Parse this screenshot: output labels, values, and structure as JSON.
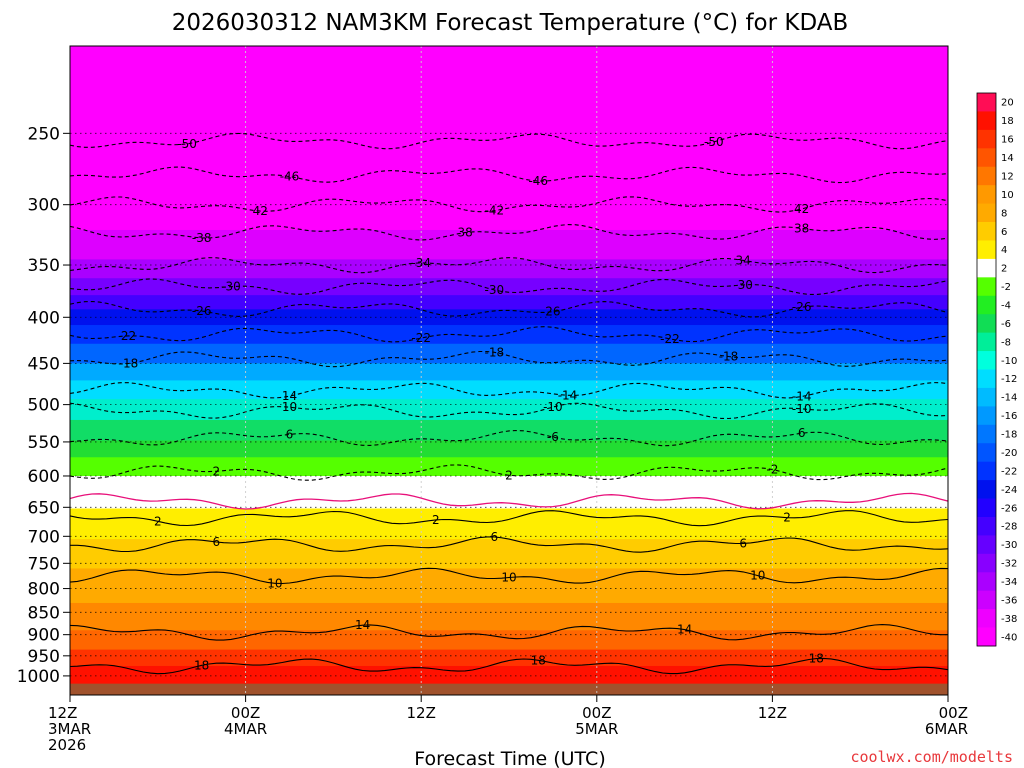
{
  "chart_data": {
    "type": "heatmap",
    "title": "2026030312 NAM3KM Forecast Temperature (°C) for KDAB",
    "xlabel": "Forecast Time (UTC)",
    "ylabel": "",
    "credit": "coolwx.com/modelts",
    "y_axis": {
      "scale": "log-pressure",
      "units": "hPa",
      "range": [
        1050,
        200
      ],
      "ticks": [
        250,
        300,
        350,
        400,
        450,
        500,
        550,
        600,
        650,
        700,
        750,
        800,
        850,
        900,
        950,
        1000
      ]
    },
    "x_axis": {
      "units": "hours since 2026030312",
      "range": [
        0,
        60
      ],
      "ticks": [
        {
          "hour": 0,
          "lines": [
            "12Z",
            "3MAR",
            "2026"
          ]
        },
        {
          "hour": 12,
          "lines": [
            "00Z",
            "4MAR"
          ]
        },
        {
          "hour": 24,
          "lines": [
            "12Z"
          ]
        },
        {
          "hour": 36,
          "lines": [
            "00Z",
            "5MAR"
          ]
        },
        {
          "hour": 48,
          "lines": [
            "12Z"
          ]
        },
        {
          "hour": 60,
          "lines": [
            "00Z",
            "6MAR"
          ]
        }
      ]
    },
    "colorbar": {
      "labels": [
        "20",
        "18",
        "16",
        "14",
        "12",
        "10",
        "8",
        "6",
        "4",
        "2",
        "-2",
        "-4",
        "-6",
        "-8",
        "-10",
        "-12",
        "-14",
        "-16",
        "-18",
        "-20",
        "-22",
        "-24",
        "-26",
        "-28",
        "-30",
        "-32",
        "-34",
        "-36",
        "-38",
        "-40"
      ],
      "colors": [
        "#ff0d55",
        "#ff1100",
        "#ff3300",
        "#ff5500",
        "#ff7700",
        "#ff9900",
        "#ffaa00",
        "#ffcc00",
        "#ffee00",
        "#ffffff",
        "#55ff00",
        "#22ee22",
        "#11dd55",
        "#00ee99",
        "#00ffdd",
        "#00ddff",
        "#00bbff",
        "#0099ff",
        "#0077ff",
        "#0055ff",
        "#0033ff",
        "#0011ee",
        "#2200ff",
        "#4400ff",
        "#6600ff",
        "#8800ff",
        "#aa00ff",
        "#cc00ff",
        "#ee00ff",
        "#ff00ff"
      ]
    },
    "bands": [
      {
        "top": 200,
        "bottom": 320,
        "color": "#ff00ff"
      },
      {
        "top": 320,
        "bottom": 345,
        "color": "#dd00ff"
      },
      {
        "top": 345,
        "bottom": 362,
        "color": "#aa00ff"
      },
      {
        "top": 362,
        "bottom": 378,
        "color": "#7700ff"
      },
      {
        "top": 378,
        "bottom": 392,
        "color": "#4400ff"
      },
      {
        "top": 392,
        "bottom": 408,
        "color": "#0011ee"
      },
      {
        "top": 408,
        "bottom": 428,
        "color": "#0033ff"
      },
      {
        "top": 428,
        "bottom": 450,
        "color": "#0066ff"
      },
      {
        "top": 450,
        "bottom": 470,
        "color": "#00aaff"
      },
      {
        "top": 470,
        "bottom": 493,
        "color": "#00ddff"
      },
      {
        "top": 493,
        "bottom": 520,
        "color": "#00eecc"
      },
      {
        "top": 520,
        "bottom": 548,
        "color": "#11dd66"
      },
      {
        "top": 548,
        "bottom": 572,
        "color": "#22dd33"
      },
      {
        "top": 572,
        "bottom": 600,
        "color": "#55ff00"
      },
      {
        "top": 600,
        "bottom": 652,
        "color": "#ffffff"
      },
      {
        "top": 652,
        "bottom": 705,
        "color": "#ffee00"
      },
      {
        "top": 705,
        "bottom": 760,
        "color": "#ffcc00"
      },
      {
        "top": 760,
        "bottom": 830,
        "color": "#ffaa00"
      },
      {
        "top": 830,
        "bottom": 890,
        "color": "#ff8800"
      },
      {
        "top": 890,
        "bottom": 935,
        "color": "#ff6600"
      },
      {
        "top": 935,
        "bottom": 975,
        "color": "#ff3300"
      },
      {
        "top": 975,
        "bottom": 1020,
        "color": "#ff1100"
      },
      {
        "top": 1020,
        "bottom": 1050,
        "color": "#a0522d"
      }
    ],
    "contours": [
      {
        "value": -50,
        "level": 255,
        "labels": [
          {
            "hour": 8,
            "text": "-50"
          },
          {
            "hour": 44,
            "text": "-50"
          }
        ]
      },
      {
        "value": -46,
        "level": 278,
        "labels": [
          {
            "hour": 15,
            "text": "-46"
          },
          {
            "hour": 32,
            "text": "-46"
          }
        ]
      },
      {
        "value": -42,
        "level": 300,
        "labels": [
          {
            "hour": 13,
            "text": "42"
          },
          {
            "hour": 29,
            "text": "-42"
          },
          {
            "hour": 50,
            "text": "42"
          }
        ]
      },
      {
        "value": -38,
        "level": 322,
        "labels": [
          {
            "hour": 9,
            "text": "-38"
          },
          {
            "hour": 27,
            "text": "38"
          },
          {
            "hour": 50,
            "text": "38"
          }
        ]
      },
      {
        "value": -34,
        "level": 350,
        "labels": [
          {
            "hour": 24,
            "text": "-34"
          },
          {
            "hour": 46,
            "text": "34"
          }
        ]
      },
      {
        "value": -30,
        "level": 370,
        "labels": [
          {
            "hour": 11,
            "text": "-30"
          },
          {
            "hour": 29,
            "text": "-30"
          },
          {
            "hour": 46,
            "text": "-30"
          }
        ]
      },
      {
        "value": -26,
        "level": 392,
        "labels": [
          {
            "hour": 9,
            "text": "-26"
          },
          {
            "hour": 33,
            "text": "26"
          },
          {
            "hour": 50,
            "text": "-26"
          }
        ]
      },
      {
        "value": -22,
        "level": 418,
        "labels": [
          {
            "hour": 4,
            "text": "22"
          },
          {
            "hour": 24,
            "text": "-22"
          },
          {
            "hour": 41,
            "text": "-22"
          }
        ]
      },
      {
        "value": -18,
        "level": 445,
        "labels": [
          {
            "hour": 4,
            "text": "-18"
          },
          {
            "hour": 29,
            "text": "-18"
          },
          {
            "hour": 45,
            "text": "-18"
          }
        ]
      },
      {
        "value": -14,
        "level": 482,
        "labels": [
          {
            "hour": 15,
            "text": "14"
          },
          {
            "hour": 34,
            "text": "-14"
          },
          {
            "hour": 50,
            "text": "-14"
          }
        ]
      },
      {
        "value": -10,
        "level": 508,
        "labels": [
          {
            "hour": 15,
            "text": "10"
          },
          {
            "hour": 33,
            "text": "-10"
          },
          {
            "hour": 50,
            "text": "-10"
          }
        ]
      },
      {
        "value": -6,
        "level": 545,
        "labels": [
          {
            "hour": 15,
            "text": "6"
          },
          {
            "hour": 33,
            "text": "-6"
          },
          {
            "hour": 50,
            "text": "6"
          }
        ]
      },
      {
        "value": -2,
        "level": 595,
        "labels": [
          {
            "hour": 10,
            "text": "2"
          },
          {
            "hour": 30,
            "text": "2"
          },
          {
            "hour": 48,
            "text": "-2"
          }
        ]
      },
      {
        "value": 0,
        "level": 640,
        "labels": []
      },
      {
        "value": 2,
        "level": 668,
        "labels": [
          {
            "hour": 6,
            "text": "2"
          },
          {
            "hour": 25,
            "text": "2"
          },
          {
            "hour": 49,
            "text": "2"
          }
        ]
      },
      {
        "value": 6,
        "level": 715,
        "labels": [
          {
            "hour": 10,
            "text": "6"
          },
          {
            "hour": 29,
            "text": "6"
          },
          {
            "hour": 46,
            "text": "6"
          }
        ]
      },
      {
        "value": 10,
        "level": 775,
        "labels": [
          {
            "hour": 14,
            "text": "10"
          },
          {
            "hour": 30,
            "text": "10"
          },
          {
            "hour": 47,
            "text": "10"
          }
        ]
      },
      {
        "value": 14,
        "level": 895,
        "labels": [
          {
            "hour": 20,
            "text": "14"
          },
          {
            "hour": 42,
            "text": "14"
          }
        ]
      },
      {
        "value": 18,
        "level": 975,
        "labels": [
          {
            "hour": 9,
            "text": "18"
          },
          {
            "hour": 32,
            "text": "18"
          },
          {
            "hour": 51,
            "text": "18"
          }
        ]
      }
    ]
  }
}
